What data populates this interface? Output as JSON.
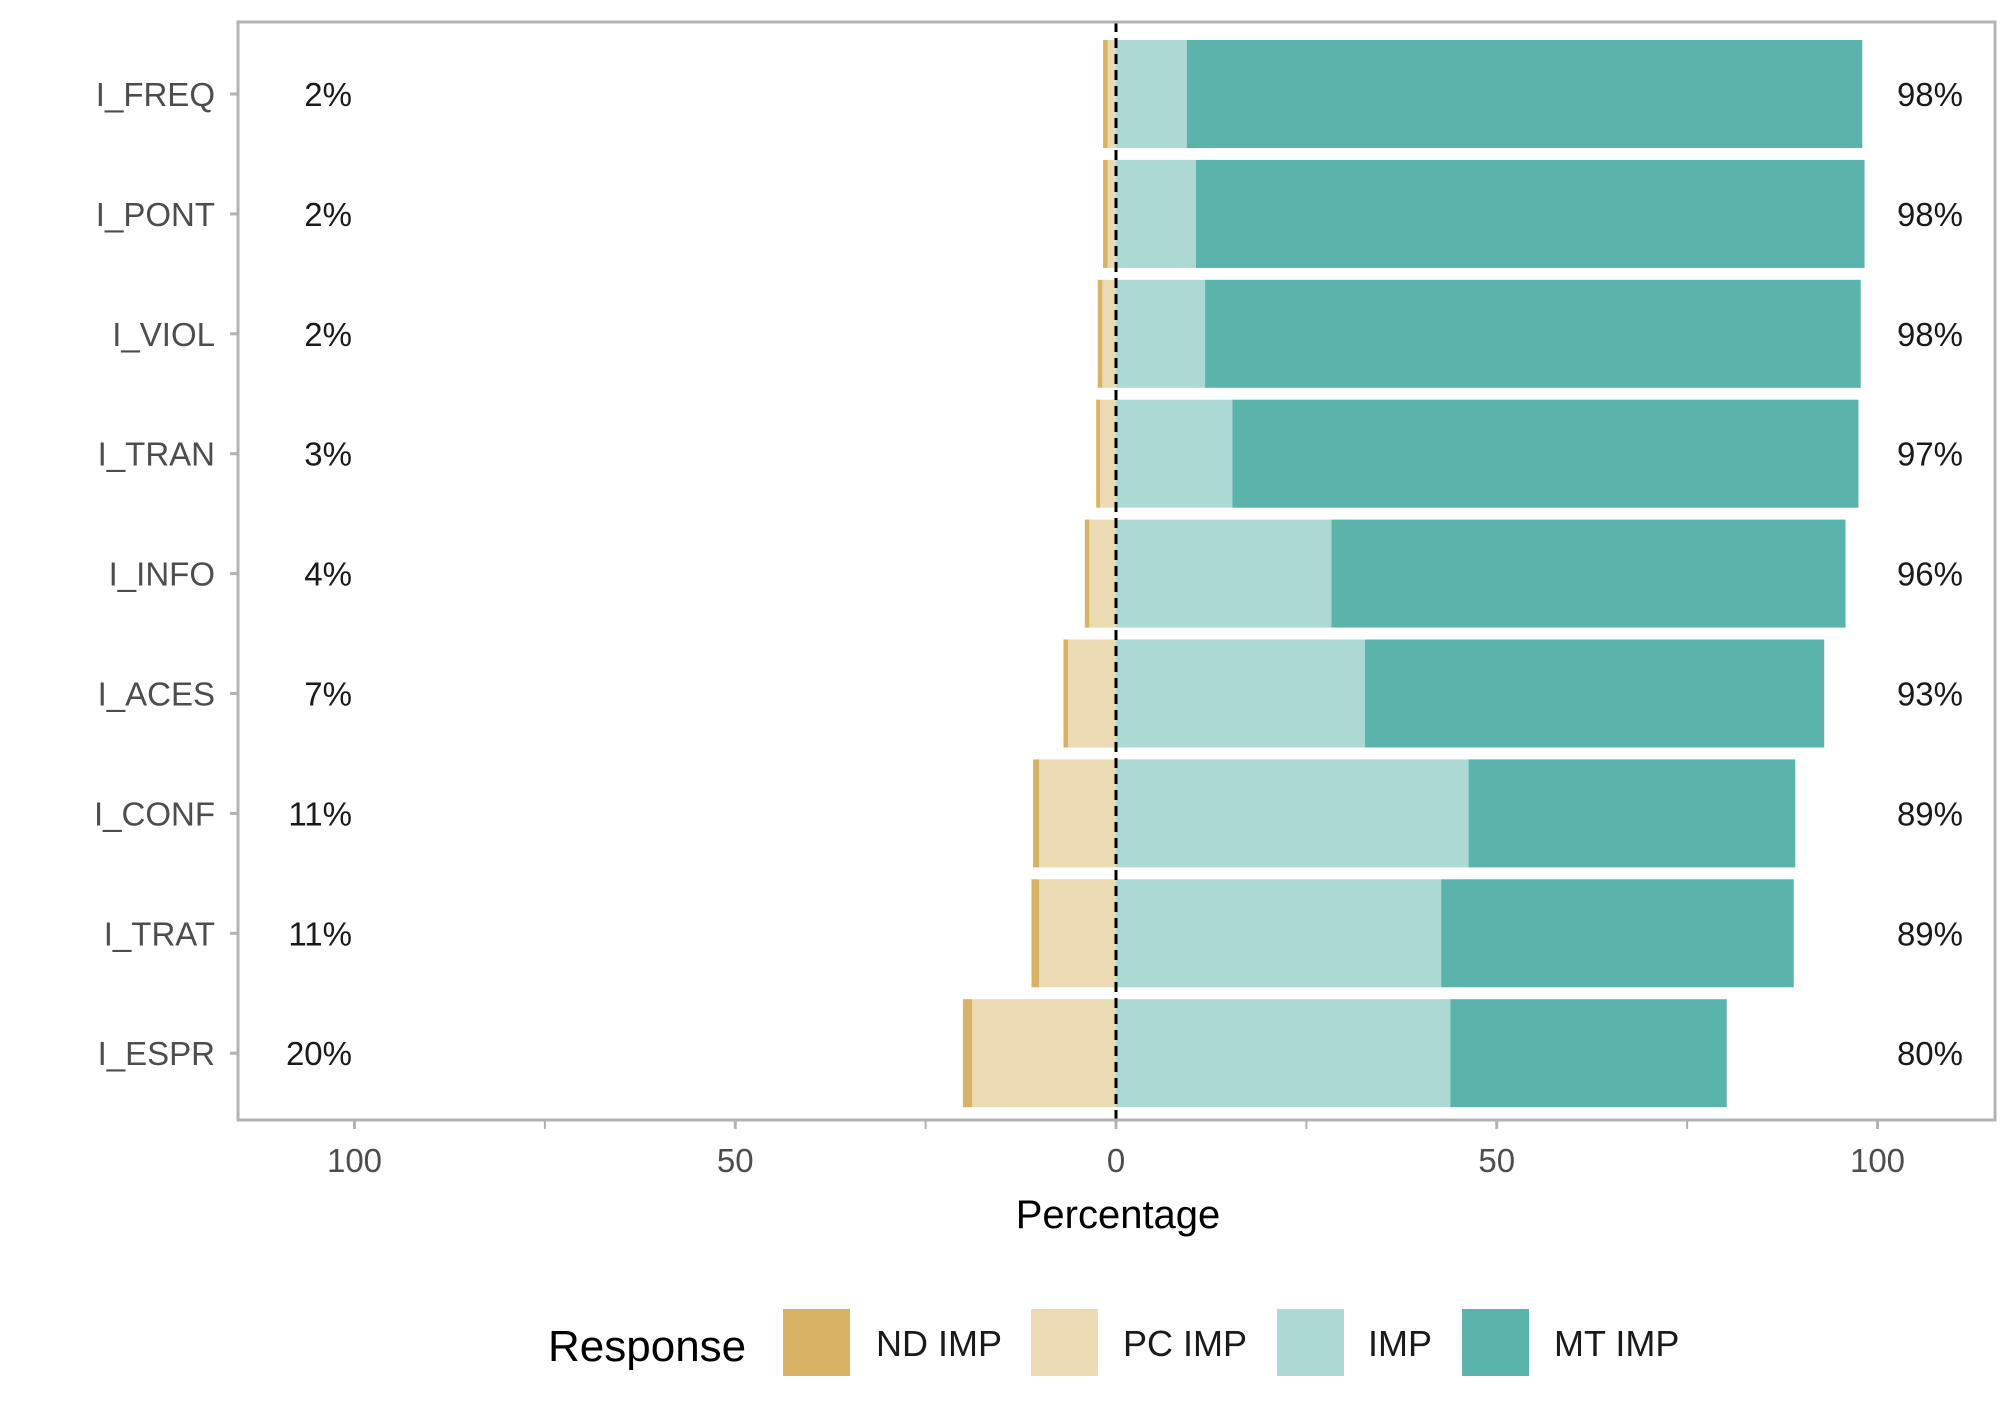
{
  "chart_data": {
    "type": "bar",
    "orientation": "horizontal",
    "stacking": "diverging",
    "xlabel": "Percentage",
    "ylabel": "",
    "xlim": [
      -115,
      115
    ],
    "xticks": [
      -100,
      -50,
      0,
      50,
      100
    ],
    "xtick_labels": [
      "100",
      "50",
      "0",
      "50",
      "100"
    ],
    "categories": [
      "I_FREQ",
      "I_PONT",
      "I_VIOL",
      "I_TRAN",
      "I_INFO",
      "I_ACES",
      "I_CONF",
      "I_TRAT",
      "I_ESPR"
    ],
    "series": [
      {
        "name": "ND IMP",
        "color": "#D8B365",
        "side": "negative",
        "values": [
          0.6,
          0.6,
          0.6,
          0.5,
          0.6,
          0.6,
          0.8,
          1.0,
          1.2
        ]
      },
      {
        "name": "PC IMP",
        "color": "#EBDAB2",
        "side": "negative",
        "values": [
          1.1,
          1.1,
          1.8,
          2.1,
          3.5,
          6.3,
          10.1,
          10.1,
          18.9
        ]
      },
      {
        "name": "IMP",
        "color": "#ADD9D5",
        "side": "positive",
        "values": [
          9.3,
          10.5,
          11.7,
          15.3,
          28.3,
          32.7,
          46.3,
          42.7,
          43.9
        ]
      },
      {
        "name": "MT IMP",
        "color": "#5AB4AC",
        "side": "positive",
        "values": [
          88.7,
          87.8,
          86.1,
          82.2,
          67.5,
          60.3,
          42.9,
          46.3,
          36.3
        ]
      }
    ],
    "left_labels": [
      "2%",
      "2%",
      "2%",
      "3%",
      "4%",
      "7%",
      "11%",
      "11%",
      "20%"
    ],
    "right_labels": [
      "98%",
      "98%",
      "98%",
      "97%",
      "96%",
      "93%",
      "89%",
      "89%",
      "80%"
    ],
    "legend": {
      "title": "Response",
      "position": "bottom",
      "entries": [
        "ND IMP",
        "PC IMP",
        "IMP",
        "MT IMP"
      ]
    },
    "grid": false,
    "center_line": "dashed"
  }
}
